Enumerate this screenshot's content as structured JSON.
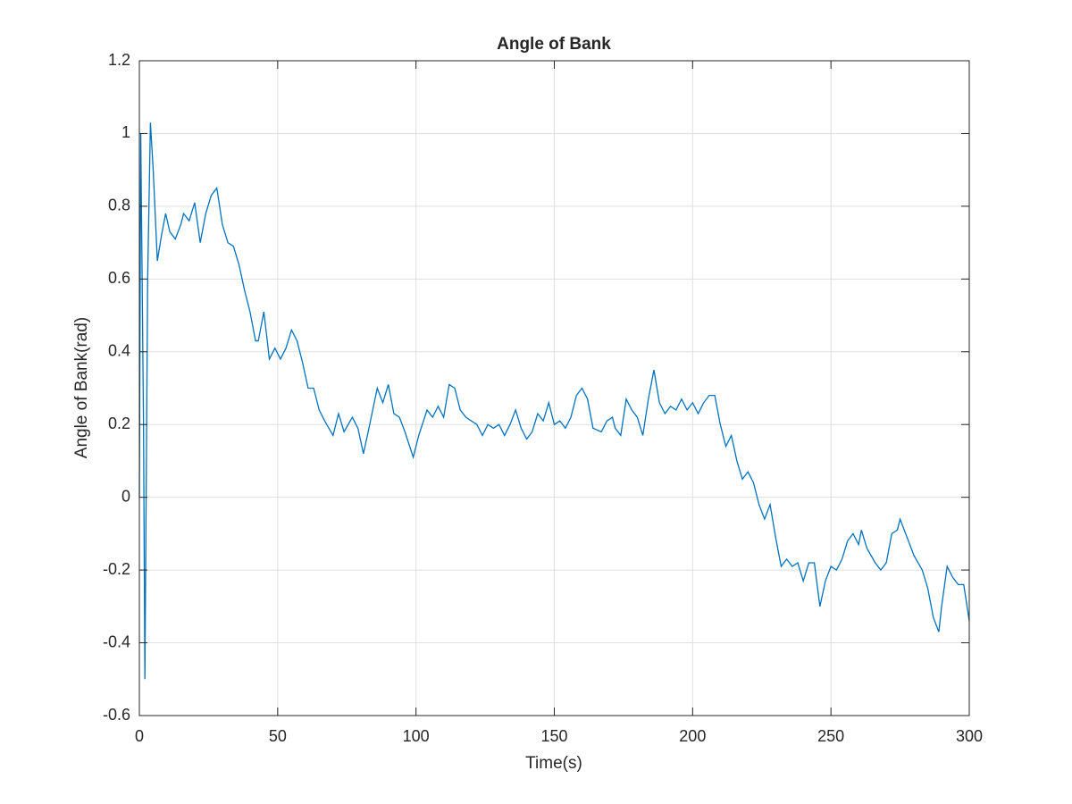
{
  "chart_data": {
    "type": "line",
    "title": "Angle of Bank",
    "x_label": "Time(s)",
    "y_label": "Angle of Bank(rad)",
    "x": [
      0,
      0.5,
      1.5,
      2,
      3,
      4,
      5,
      6.5,
      8,
      9.5,
      11,
      13,
      15,
      16,
      18,
      20,
      22,
      24,
      26,
      28,
      30,
      32,
      34,
      36,
      38,
      40,
      42,
      43,
      45,
      47,
      49,
      51,
      53,
      55,
      57,
      59,
      61,
      63,
      65,
      67,
      70,
      72,
      74,
      77,
      79,
      81,
      83,
      86,
      88,
      90,
      92,
      94,
      96,
      99,
      101,
      104,
      106,
      108,
      110,
      112,
      114,
      116,
      118,
      120,
      122,
      124,
      126,
      128,
      130,
      132,
      134,
      136,
      138,
      140,
      142,
      144,
      146,
      148,
      150,
      152,
      154,
      156,
      158,
      160,
      162,
      164,
      167,
      169,
      171,
      172,
      174,
      176,
      178,
      180,
      182,
      184,
      186,
      188,
      190,
      192,
      194,
      196,
      198,
      200,
      202,
      204,
      206,
      208,
      210,
      212,
      214,
      216,
      218,
      220,
      222,
      224,
      226,
      228,
      230,
      232,
      234,
      236,
      238,
      240,
      242,
      244,
      246,
      248,
      250,
      252,
      254,
      256,
      258,
      260,
      261,
      263,
      266,
      268,
      270,
      272,
      274,
      275,
      277,
      280,
      283,
      285,
      287,
      289,
      290,
      292,
      294,
      296,
      298,
      300
    ],
    "series": [
      {
        "name": "Angle of Bank",
        "color": "#0072bd",
        "values": [
          0,
          1.0,
          0.2,
          -0.5,
          0.6,
          1.03,
          0.9,
          0.65,
          0.72,
          0.78,
          0.73,
          0.71,
          0.75,
          0.78,
          0.76,
          0.81,
          0.7,
          0.78,
          0.83,
          0.85,
          0.75,
          0.7,
          0.69,
          0.64,
          0.57,
          0.51,
          0.43,
          0.43,
          0.51,
          0.38,
          0.41,
          0.38,
          0.41,
          0.46,
          0.43,
          0.37,
          0.3,
          0.3,
          0.24,
          0.21,
          0.17,
          0.23,
          0.18,
          0.22,
          0.19,
          0.12,
          0.19,
          0.3,
          0.26,
          0.31,
          0.23,
          0.22,
          0.18,
          0.11,
          0.17,
          0.24,
          0.22,
          0.25,
          0.22,
          0.31,
          0.3,
          0.24,
          0.22,
          0.21,
          0.2,
          0.17,
          0.2,
          0.19,
          0.2,
          0.17,
          0.2,
          0.24,
          0.19,
          0.16,
          0.18,
          0.23,
          0.21,
          0.26,
          0.2,
          0.21,
          0.19,
          0.22,
          0.28,
          0.3,
          0.27,
          0.19,
          0.18,
          0.21,
          0.22,
          0.19,
          0.17,
          0.27,
          0.24,
          0.22,
          0.17,
          0.27,
          0.35,
          0.26,
          0.23,
          0.25,
          0.24,
          0.27,
          0.24,
          0.26,
          0.23,
          0.26,
          0.28,
          0.28,
          0.2,
          0.14,
          0.17,
          0.1,
          0.05,
          0.07,
          0.04,
          -0.02,
          -0.06,
          -0.02,
          -0.11,
          -0.19,
          -0.17,
          -0.19,
          -0.18,
          -0.23,
          -0.18,
          -0.18,
          -0.3,
          -0.23,
          -0.19,
          -0.2,
          -0.17,
          -0.12,
          -0.1,
          -0.13,
          -0.09,
          -0.14,
          -0.18,
          -0.2,
          -0.18,
          -0.1,
          -0.09,
          -0.06,
          -0.1,
          -0.16,
          -0.2,
          -0.25,
          -0.33,
          -0.37,
          -0.3,
          -0.19,
          -0.22,
          -0.24,
          -0.24,
          -0.34
        ]
      }
    ],
    "xlim": [
      0,
      300
    ],
    "xticks": [
      0,
      50,
      100,
      150,
      200,
      250,
      300
    ],
    "ylim": [
      -0.6,
      1.2
    ],
    "yticks": [
      -0.6,
      -0.4,
      -0.2,
      0,
      0.2,
      0.4,
      0.6,
      0.8,
      1,
      1.2
    ],
    "grid": true
  }
}
